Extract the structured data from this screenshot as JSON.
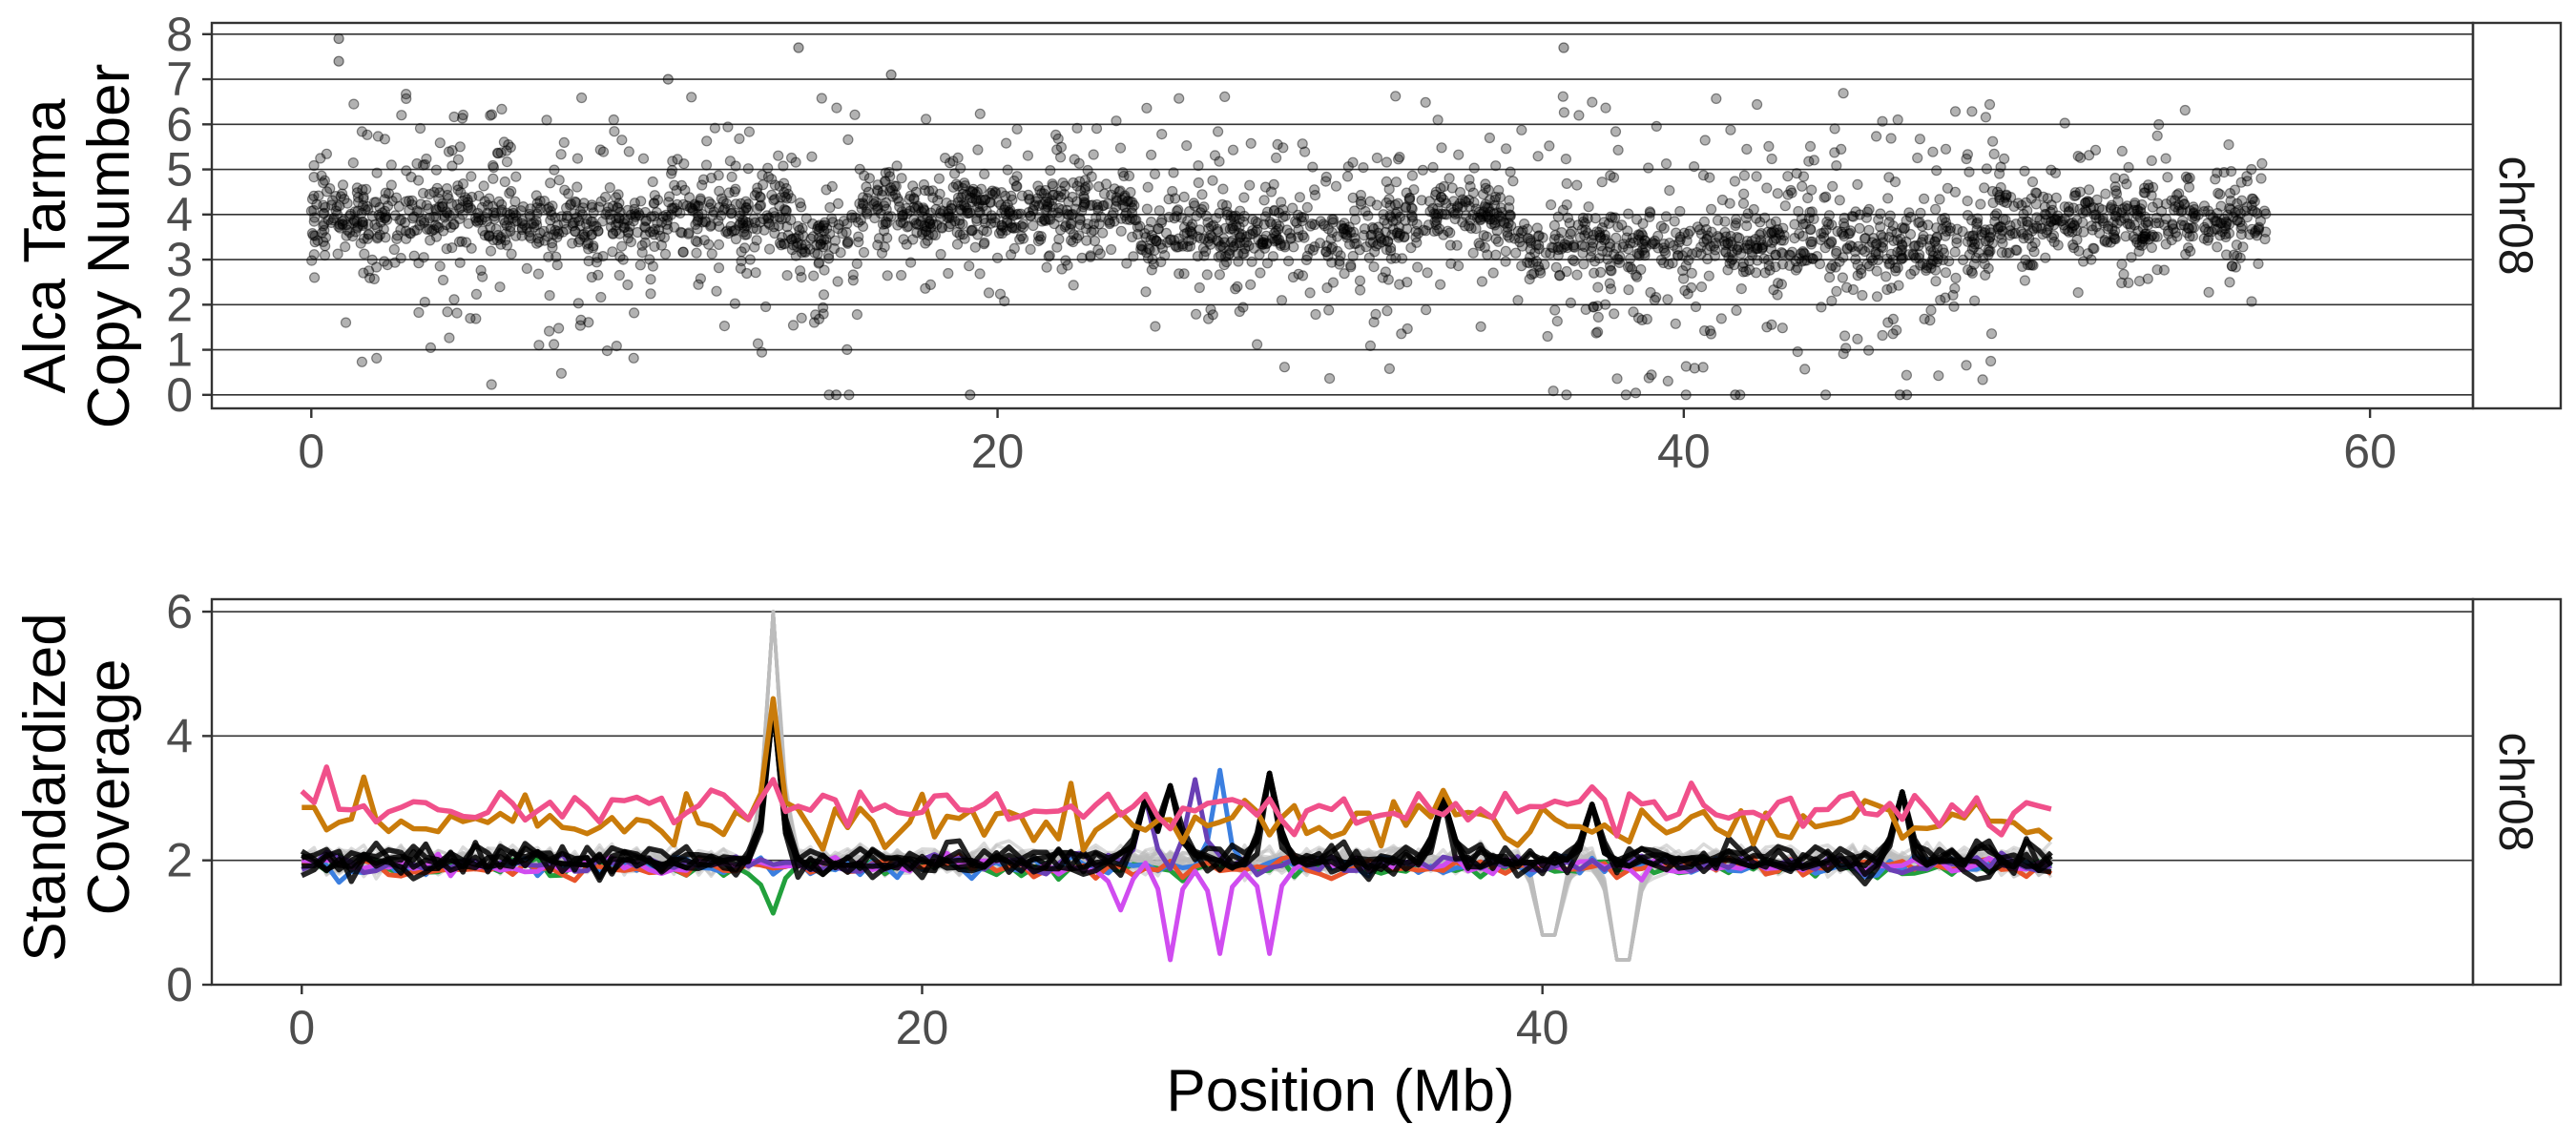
{
  "colors": {
    "points": "#000000",
    "pink": "#f0508a",
    "orange": "#c97b0a",
    "black": "#000000",
    "grey": "#bbbbbb",
    "magenta": "#d04cf0",
    "purple": "#6a3fb5",
    "blue": "#3b7fe0",
    "green": "#22a03c",
    "orange_red": "#e8542b"
  },
  "chart_data": [
    {
      "type": "scatter",
      "ylabel_line1": "Alca Tarma",
      "ylabel_line2": "Copy Number",
      "xlabel": "",
      "strip": "chr08",
      "xlim": [
        -2.9,
        63
      ],
      "ylim": [
        -0.3,
        8.25
      ],
      "xticks": [
        0,
        20,
        40,
        60
      ],
      "yticks": [
        0,
        1,
        2,
        3,
        4,
        5,
        6,
        7,
        8
      ],
      "grid": "horizontal lines at every integer",
      "points_style": "semi-transparent black dots, alpha 0.3",
      "x_extent": [
        0,
        57
      ],
      "n_points": 3200,
      "copy_number_profile": [
        {
          "start": 0,
          "end": 1,
          "typical": 4,
          "spread": 0.9
        },
        {
          "start": 1,
          "end": 7,
          "typical": 3.9,
          "spread": 1.4
        },
        {
          "start": 7,
          "end": 10,
          "typical": 3.8,
          "spread": 1.6
        },
        {
          "start": 10,
          "end": 14,
          "typical": 4,
          "spread": 1.0
        },
        {
          "start": 14,
          "end": 16,
          "typical": 3.5,
          "spread": 1.8
        },
        {
          "start": 16,
          "end": 24,
          "typical": 4.1,
          "spread": 0.9
        },
        {
          "start": 24,
          "end": 32,
          "typical": 3.6,
          "spread": 1.3
        },
        {
          "start": 32,
          "end": 35,
          "typical": 4,
          "spread": 0.8
        },
        {
          "start": 35,
          "end": 49,
          "typical": 3.3,
          "spread": 1.6
        },
        {
          "start": 49,
          "end": 57,
          "typical": 3.9,
          "spread": 0.9
        }
      ],
      "notable_points": [
        {
          "x": 0.8,
          "y": 7.9
        },
        {
          "x": 0.8,
          "y": 7.4
        },
        {
          "x": 14.2,
          "y": 7.7
        },
        {
          "x": 36.5,
          "y": 7.7
        },
        {
          "x": 16.9,
          "y": 7.1
        },
        {
          "x": 10.4,
          "y": 7.0
        },
        {
          "x": 46.3,
          "y": 0
        },
        {
          "x": 46.5,
          "y": 0
        },
        {
          "x": 15.3,
          "y": 0
        },
        {
          "x": 19.2,
          "y": 0
        },
        {
          "x": 41.5,
          "y": 0
        }
      ]
    },
    {
      "type": "line",
      "ylabel_line1": "Standardized",
      "ylabel_line2": "Coverage",
      "xlabel": "Position (Mb)",
      "strip": "chr08",
      "xlim": [
        -2.9,
        70
      ],
      "ylim": [
        0,
        6.2
      ],
      "xticks": [
        0,
        20,
        40
      ],
      "yticks": [
        0,
        2,
        4,
        6
      ],
      "grid": "horizontal lines at 2, 4, 6",
      "x_extent": [
        0,
        56.5
      ],
      "series": [
        {
          "color_key": "pink",
          "baseline": 2.85,
          "noise": 0.15,
          "spikes": [
            {
              "x": 0.8,
              "y": 3.5
            },
            {
              "x": 15.1,
              "y": 3.3
            }
          ]
        },
        {
          "color_key": "orange",
          "baseline": 2.6,
          "noise": 0.2,
          "spikes": [
            {
              "x": 0.2,
              "y": 2.85
            },
            {
              "x": 15.1,
              "y": 4.6
            }
          ]
        },
        {
          "color_key": "grey",
          "count": 20,
          "baseline": 2.0,
          "noise": 0.1,
          "spikes": [
            {
              "x": 15.1,
              "y": 6.0
            },
            {
              "x": 40.2,
              "y": 0.8
            },
            {
              "x": 42.6,
              "y": 0.4
            }
          ]
        },
        {
          "color_key": "black",
          "count": 5,
          "baseline": 2.0,
          "noise": 0.12,
          "spikes": [
            {
              "x": 15.1,
              "y": 4.5
            },
            {
              "x": 27.1,
              "y": 3.0
            },
            {
              "x": 28.0,
              "y": 3.2
            },
            {
              "x": 31.3,
              "y": 3.4
            },
            {
              "x": 36.9,
              "y": 3.0
            },
            {
              "x": 41.7,
              "y": 2.9
            },
            {
              "x": 51.6,
              "y": 3.1
            }
          ]
        },
        {
          "color_key": "magenta",
          "baseline": 1.92,
          "noise": 0.08,
          "spikes": [
            {
              "x": 26.3,
              "y": 1.2
            },
            {
              "x": 28.0,
              "y": 0.4
            },
            {
              "x": 29.6,
              "y": 0.5
            },
            {
              "x": 31.3,
              "y": 0.5
            }
          ]
        },
        {
          "color_key": "purple",
          "baseline": 1.95,
          "noise": 0.08,
          "spikes": [
            {
              "x": 27.1,
              "y": 3.0
            },
            {
              "x": 28.8,
              "y": 3.3
            }
          ]
        },
        {
          "color_key": "blue",
          "baseline": 1.9,
          "noise": 0.08,
          "spikes": [
            {
              "x": 29.6,
              "y": 3.45
            }
          ]
        },
        {
          "color_key": "green",
          "baseline": 1.88,
          "noise": 0.08,
          "spikes": [
            {
              "x": 15.1,
              "y": 1.15
            }
          ]
        },
        {
          "color_key": "orange_red",
          "baseline": 1.9,
          "noise": 0.08,
          "spikes": []
        }
      ]
    }
  ]
}
